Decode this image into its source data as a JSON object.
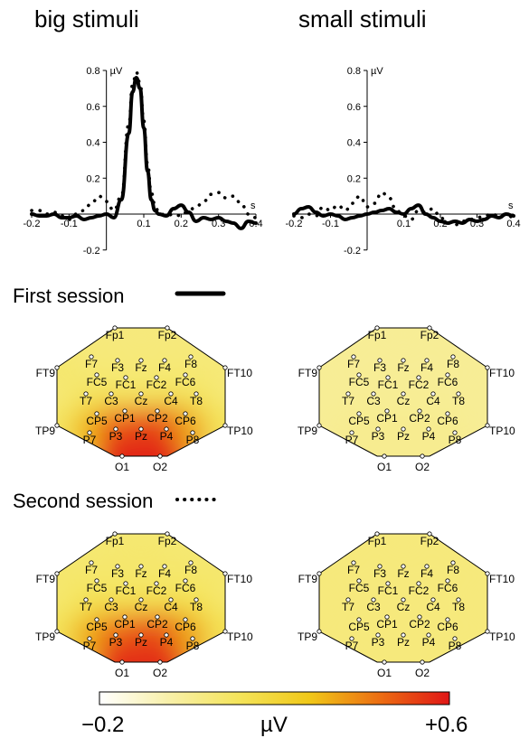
{
  "titles": {
    "left": "big stimuli",
    "right": "small stimuli"
  },
  "sessions": {
    "first": "First session",
    "second": "Second session"
  },
  "chart_data": [
    {
      "type": "line",
      "name": "erp-big",
      "ylabel": "µV",
      "xlabel": "s",
      "xlim": [
        -0.2,
        0.4
      ],
      "ylim": [
        -0.2,
        0.8
      ],
      "xticks": [
        -0.2,
        -0.1,
        0.1,
        0.2,
        0.3,
        0.4
      ],
      "yticks": [
        -0.2,
        0.2,
        0.4,
        0.6,
        0.8
      ],
      "tick_labels_x": [
        "-0.2",
        "-0.1",
        "0.1",
        "0.2",
        "0.3",
        "0.4"
      ],
      "tick_labels_y": [
        "-0.2",
        "0.2",
        "0.4",
        "0.6",
        "0.8"
      ],
      "series": [
        {
          "style": "solid",
          "x": [
            -0.2,
            -0.18,
            -0.16,
            -0.14,
            -0.12,
            -0.1,
            -0.08,
            -0.06,
            -0.04,
            -0.02,
            0,
            0.02,
            0.04,
            0.06,
            0.07,
            0.08,
            0.09,
            0.1,
            0.11,
            0.12,
            0.13,
            0.14,
            0.16,
            0.18,
            0.2,
            0.22,
            0.24,
            0.26,
            0.28,
            0.3,
            0.32,
            0.34,
            0.36,
            0.38,
            0.4
          ],
          "y": [
            0,
            -0.01,
            -0.01,
            0,
            -0.02,
            -0.02,
            -0.01,
            -0.03,
            -0.02,
            -0.01,
            0,
            -0.02,
            0.08,
            0.45,
            0.68,
            0.76,
            0.7,
            0.48,
            0.24,
            0.08,
            0.02,
            0,
            -0.01,
            0.03,
            0.05,
            0.01,
            -0.04,
            -0.02,
            -0.03,
            -0.02,
            -0.04,
            -0.05,
            -0.08,
            -0.04,
            -0.05
          ]
        },
        {
          "style": "dotted",
          "x": [
            -0.2,
            -0.18,
            -0.16,
            -0.14,
            -0.12,
            -0.1,
            -0.08,
            -0.06,
            -0.04,
            -0.02,
            0,
            0.02,
            0.04,
            0.06,
            0.07,
            0.08,
            0.09,
            0.1,
            0.11,
            0.12,
            0.13,
            0.14,
            0.16,
            0.18,
            0.2,
            0.22,
            0.24,
            0.26,
            0.28,
            0.3,
            0.32,
            0.34,
            0.36,
            0.38,
            0.4
          ],
          "y": [
            0.02,
            0.02,
            0,
            0.01,
            -0.01,
            -0.03,
            0,
            0.02,
            0.06,
            0.1,
            0.07,
            0.02,
            0.1,
            0.5,
            0.72,
            0.79,
            0.73,
            0.52,
            0.28,
            0.12,
            0.05,
            0.01,
            -0.01,
            0,
            -0.01,
            0.02,
            0.04,
            0.07,
            0.11,
            0.12,
            0.09,
            0.1,
            0.06,
            0,
            -0.02
          ]
        }
      ]
    },
    {
      "type": "line",
      "name": "erp-small",
      "ylabel": "µV",
      "xlabel": "s",
      "xlim": [
        -0.2,
        0.4
      ],
      "ylim": [
        -0.2,
        0.8
      ],
      "xticks": [
        -0.2,
        -0.1,
        0.1,
        0.2,
        0.3,
        0.4
      ],
      "yticks": [
        -0.2,
        0.2,
        0.4,
        0.6,
        0.8
      ],
      "tick_labels_x": [
        "-0.2",
        "-0.1",
        "0.1",
        "0.2",
        "0.3",
        "0.4"
      ],
      "tick_labels_y": [
        "-0.2",
        "0.2",
        "0.4",
        "0.6",
        "0.8"
      ],
      "series": [
        {
          "style": "solid",
          "x": [
            -0.2,
            -0.18,
            -0.16,
            -0.14,
            -0.12,
            -0.1,
            -0.08,
            -0.06,
            -0.04,
            -0.02,
            0,
            0.02,
            0.04,
            0.06,
            0.08,
            0.1,
            0.12,
            0.14,
            0.16,
            0.18,
            0.2,
            0.22,
            0.24,
            0.26,
            0.28,
            0.3,
            0.32,
            0.34,
            0.36,
            0.38,
            0.4
          ],
          "y": [
            0,
            0.03,
            0.04,
            0.01,
            -0.01,
            0,
            -0.01,
            -0.03,
            -0.02,
            -0.01,
            0,
            0.01,
            0.02,
            0.03,
            0.01,
            0,
            0.03,
            0.05,
            0,
            -0.02,
            -0.04,
            -0.05,
            -0.04,
            -0.05,
            -0.03,
            -0.04,
            -0.03,
            -0.01,
            -0.02,
            0,
            -0.01
          ]
        },
        {
          "style": "dotted",
          "x": [
            -0.2,
            -0.18,
            -0.16,
            -0.14,
            -0.12,
            -0.1,
            -0.08,
            -0.06,
            -0.04,
            -0.02,
            0,
            0.02,
            0.04,
            0.06,
            0.08,
            0.1,
            0.12,
            0.14,
            0.16,
            0.18,
            0.2,
            0.22,
            0.24,
            0.26,
            0.28,
            0.3,
            0.32,
            0.34,
            0.36,
            0.38,
            0.4
          ],
          "y": [
            -0.01,
            -0.02,
            0,
            -0.01,
            0.04,
            0.02,
            0.05,
            0.02,
            0.06,
            0.1,
            0.04,
            0.06,
            0.12,
            0.09,
            0.02,
            -0.01,
            -0.03,
            0.02,
            0.01,
            0.03,
            -0.02,
            -0.05,
            -0.06,
            -0.04,
            -0.03,
            -0.02,
            -0.01,
            0,
            -0.01,
            0,
            -0.02
          ]
        }
      ]
    },
    {
      "type": "heatmap",
      "name": "topomaps",
      "colorbar": {
        "min_label": "−0.2",
        "max_label": "+0.6",
        "unit": "µV",
        "min": -0.2,
        "max": 0.6,
        "colors": [
          "#ffffff",
          "#f8f0a8",
          "#f4e45a",
          "#f0c818",
          "#ec6e12",
          "#e01616"
        ]
      },
      "electrodes": [
        "Fp1",
        "Fp2",
        "F7",
        "F3",
        "Fz",
        "F4",
        "F8",
        "FT9",
        "FC5",
        "FC1",
        "FC2",
        "FC6",
        "FT10",
        "T7",
        "C3",
        "Cz",
        "C4",
        "T8",
        "CP5",
        "CP1",
        "CP2",
        "CP6",
        "TP9",
        "P7",
        "P3",
        "Pz",
        "P4",
        "P8",
        "TP10",
        "O1",
        "O2"
      ],
      "maps": [
        {
          "condition": "big stimuli",
          "session": "First session",
          "values": {
            "Fp1": 0.05,
            "Fp2": 0.05,
            "F7": 0.05,
            "F3": 0.05,
            "Fz": 0.05,
            "F4": 0.05,
            "F8": 0.05,
            "FT9": 0.08,
            "FC5": 0.06,
            "FC1": 0.06,
            "FC2": 0.06,
            "FC6": 0.06,
            "FT10": 0.06,
            "T7": 0.08,
            "C3": 0.08,
            "Cz": 0.07,
            "C4": 0.08,
            "T8": 0.08,
            "CP5": 0.16,
            "CP1": 0.14,
            "CP2": 0.15,
            "CP6": 0.16,
            "TP9": 0.1,
            "P7": 0.3,
            "P3": 0.45,
            "Pz": 0.5,
            "P4": 0.52,
            "P8": 0.35,
            "TP10": 0.12,
            "O1": 0.58,
            "O2": 0.58
          }
        },
        {
          "condition": "small stimuli",
          "session": "First session",
          "values": {
            "Fp1": 0.0,
            "Fp2": 0.0,
            "F7": 0.0,
            "F3": 0.0,
            "Fz": 0.0,
            "F4": 0.0,
            "F8": 0.0,
            "FT9": 0.0,
            "FC5": 0.0,
            "FC1": 0.0,
            "FC2": 0.0,
            "FC6": 0.0,
            "FT10": 0.0,
            "T7": 0.0,
            "C3": 0.0,
            "Cz": 0.0,
            "C4": 0.0,
            "T8": 0.0,
            "CP5": 0.0,
            "CP1": 0.0,
            "CP2": 0.0,
            "CP6": 0.0,
            "TP9": 0.0,
            "P7": 0.01,
            "P3": 0.01,
            "Pz": 0.01,
            "P4": 0.01,
            "P8": 0.01,
            "TP10": 0.0,
            "O1": 0.01,
            "O2": 0.01
          }
        },
        {
          "condition": "big stimuli",
          "session": "Second session",
          "values": {
            "Fp1": 0.07,
            "Fp2": 0.07,
            "F7": 0.07,
            "F3": 0.08,
            "Fz": 0.08,
            "F4": 0.08,
            "F8": 0.07,
            "FT9": 0.08,
            "FC5": 0.08,
            "FC1": 0.08,
            "FC2": 0.08,
            "FC6": 0.08,
            "FT10": 0.08,
            "T7": 0.1,
            "C3": 0.1,
            "Cz": 0.1,
            "C4": 0.1,
            "T8": 0.1,
            "CP5": 0.18,
            "CP1": 0.16,
            "CP2": 0.17,
            "CP6": 0.18,
            "TP9": 0.12,
            "P7": 0.32,
            "P3": 0.42,
            "Pz": 0.48,
            "P4": 0.5,
            "P8": 0.35,
            "TP10": 0.14,
            "O1": 0.56,
            "O2": 0.56
          }
        },
        {
          "condition": "small stimuli",
          "session": "Second session",
          "values": {
            "Fp1": 0.05,
            "Fp2": 0.05,
            "F7": 0.05,
            "F3": 0.05,
            "Fz": 0.05,
            "F4": 0.05,
            "F8": 0.05,
            "FT9": 0.05,
            "FC5": 0.05,
            "FC1": 0.05,
            "FC2": 0.05,
            "FC6": 0.05,
            "FT10": 0.05,
            "T7": 0.05,
            "C3": 0.05,
            "Cz": 0.05,
            "C4": 0.05,
            "T8": 0.05,
            "CP5": 0.05,
            "CP1": 0.05,
            "CP2": 0.05,
            "CP6": 0.05,
            "TP9": 0.05,
            "P7": 0.05,
            "P3": 0.05,
            "Pz": 0.05,
            "P4": 0.05,
            "P8": 0.05,
            "TP10": 0.05,
            "O1": 0.05,
            "O2": 0.05
          }
        }
      ]
    }
  ]
}
